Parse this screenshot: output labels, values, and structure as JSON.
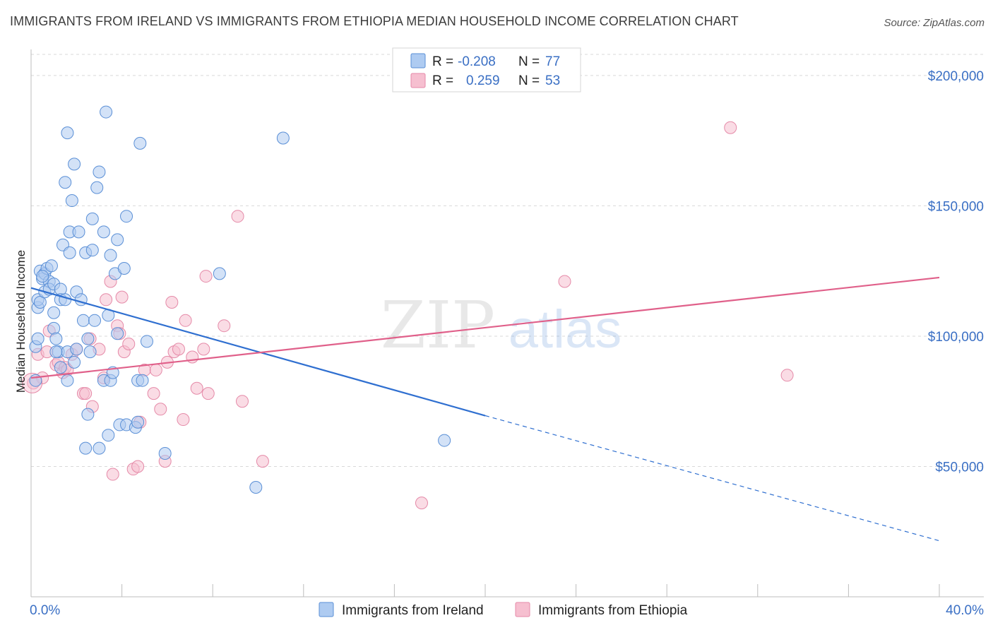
{
  "header": {
    "title": "IMMIGRANTS FROM IRELAND VS IMMIGRANTS FROM ETHIOPIA MEDIAN HOUSEHOLD INCOME CORRELATION CHART",
    "source": "Source: ZipAtlas.com"
  },
  "watermark": {
    "zip": "ZIP",
    "atlas": "atlas"
  },
  "colors": {
    "ireland_fill": "#aecbf1",
    "ireland_stroke": "#5a8fd6",
    "ireland_line": "#2f6fd0",
    "ethiopia_fill": "#f6bfd0",
    "ethiopia_stroke": "#e58aa8",
    "ethiopia_line": "#e0608a",
    "grid": "#d9d9d9",
    "axis_text": "#3a6fc4"
  },
  "legend_top": {
    "rows": [
      {
        "r_label": "R =",
        "r_value": "-0.208",
        "n_label": "N =",
        "n_value": "77"
      },
      {
        "r_label": "R =",
        "r_value": "0.259",
        "n_label": "N =",
        "n_value": "53"
      }
    ]
  },
  "legend_bottom": {
    "items": [
      "Immigrants from Ireland",
      "Immigrants from Ethiopia"
    ]
  },
  "chart_data": {
    "type": "scatter",
    "title": "IMMIGRANTS FROM IRELAND VS IMMIGRANTS FROM ETHIOPIA MEDIAN HOUSEHOLD INCOME CORRELATION CHART",
    "xlabel": "",
    "ylabel": "Median Household Income",
    "xlim": [
      0,
      40
    ],
    "ylim": [
      0,
      210000
    ],
    "x_tick_labels": [
      "0.0%",
      "40.0%"
    ],
    "y_ticks": [
      50000,
      100000,
      150000,
      200000
    ],
    "y_tick_labels": [
      "$50,000",
      "$100,000",
      "$150,000",
      "$200,000"
    ],
    "series": [
      {
        "name": "Immigrants from Ireland",
        "r": -0.208,
        "n": 77,
        "trend": {
          "x0": 0,
          "y0": 118500,
          "x1": 20,
          "y1": 69500,
          "dash_x1": 40,
          "dash_y1": 21500
        },
        "points": [
          [
            0.2,
            83000
          ],
          [
            0.2,
            96000
          ],
          [
            0.3,
            99000
          ],
          [
            0.3,
            111000
          ],
          [
            0.3,
            114000
          ],
          [
            0.4,
            113000
          ],
          [
            0.4,
            125000
          ],
          [
            0.5,
            122000
          ],
          [
            0.6,
            124000
          ],
          [
            0.6,
            117000
          ],
          [
            0.7,
            126000
          ],
          [
            0.8,
            121000
          ],
          [
            0.8,
            118000
          ],
          [
            0.9,
            127000
          ],
          [
            1.0,
            120000
          ],
          [
            1.0,
            109000
          ],
          [
            1.0,
            103000
          ],
          [
            1.1,
            99000
          ],
          [
            1.2,
            94000
          ],
          [
            1.3,
            118000
          ],
          [
            1.3,
            114000
          ],
          [
            1.4,
            135000
          ],
          [
            1.5,
            114000
          ],
          [
            1.6,
            94000
          ],
          [
            1.6,
            83000
          ],
          [
            1.7,
            140000
          ],
          [
            1.7,
            132000
          ],
          [
            1.8,
            152000
          ],
          [
            1.9,
            166000
          ],
          [
            2.0,
            117000
          ],
          [
            2.1,
            140000
          ],
          [
            2.2,
            114000
          ],
          [
            2.3,
            106000
          ],
          [
            2.4,
            132000
          ],
          [
            2.4,
            57000
          ],
          [
            2.5,
            99000
          ],
          [
            2.5,
            70000
          ],
          [
            2.6,
            94000
          ],
          [
            2.7,
            145000
          ],
          [
            2.7,
            133000
          ],
          [
            2.8,
            106000
          ],
          [
            2.9,
            157000
          ],
          [
            3.0,
            163000
          ],
          [
            3.0,
            57000
          ],
          [
            3.2,
            83000
          ],
          [
            3.2,
            140000
          ],
          [
            3.3,
            186000
          ],
          [
            3.4,
            108000
          ],
          [
            3.4,
            62000
          ],
          [
            3.5,
            83000
          ],
          [
            3.5,
            131000
          ],
          [
            3.6,
            86000
          ],
          [
            3.7,
            124000
          ],
          [
            3.8,
            101000
          ],
          [
            3.8,
            137000
          ],
          [
            3.9,
            66000
          ],
          [
            4.1,
            126000
          ],
          [
            4.2,
            146000
          ],
          [
            4.2,
            66000
          ],
          [
            4.6,
            65000
          ],
          [
            4.7,
            67000
          ],
          [
            4.7,
            83000
          ],
          [
            4.8,
            174000
          ],
          [
            4.9,
            83000
          ],
          [
            5.1,
            98000
          ],
          [
            5.9,
            55000
          ],
          [
            1.6,
            178000
          ],
          [
            1.5,
            159000
          ],
          [
            8.3,
            124000
          ],
          [
            9.9,
            42000
          ],
          [
            11.1,
            176000
          ],
          [
            18.2,
            60000
          ],
          [
            1.1,
            94000
          ],
          [
            0.5,
            123000
          ],
          [
            2.0,
            95000
          ],
          [
            1.9,
            90000
          ],
          [
            1.3,
            88000
          ]
        ]
      },
      {
        "name": "Immigrants from Ethiopia",
        "r": 0.259,
        "n": 53,
        "trend": {
          "x0": 0,
          "y0": 84000,
          "x1": 40,
          "y1": 122500
        },
        "points": [
          [
            0.1,
            82000
          ],
          [
            0.3,
            93000
          ],
          [
            0.5,
            84000
          ],
          [
            0.7,
            94000
          ],
          [
            0.8,
            102000
          ],
          [
            1.1,
            89000
          ],
          [
            1.2,
            90000
          ],
          [
            1.4,
            86000
          ],
          [
            1.5,
            88000
          ],
          [
            1.6,
            87000
          ],
          [
            1.8,
            93000
          ],
          [
            2.0,
            95000
          ],
          [
            2.3,
            78000
          ],
          [
            2.4,
            78000
          ],
          [
            2.6,
            99000
          ],
          [
            2.7,
            73000
          ],
          [
            3.0,
            95000
          ],
          [
            3.2,
            84000
          ],
          [
            3.3,
            114000
          ],
          [
            3.5,
            121000
          ],
          [
            3.6,
            47000
          ],
          [
            3.8,
            104000
          ],
          [
            3.9,
            101000
          ],
          [
            4.0,
            115000
          ],
          [
            4.1,
            94000
          ],
          [
            4.3,
            97000
          ],
          [
            4.5,
            49000
          ],
          [
            4.7,
            50000
          ],
          [
            4.8,
            67000
          ],
          [
            5.0,
            87000
          ],
          [
            5.4,
            78000
          ],
          [
            5.5,
            87000
          ],
          [
            5.7,
            72000
          ],
          [
            5.9,
            52000
          ],
          [
            6.0,
            90000
          ],
          [
            6.2,
            113000
          ],
          [
            6.3,
            94000
          ],
          [
            6.5,
            95000
          ],
          [
            6.7,
            68000
          ],
          [
            6.8,
            106000
          ],
          [
            7.1,
            92000
          ],
          [
            7.3,
            80000
          ],
          [
            7.6,
            95000
          ],
          [
            7.7,
            123000
          ],
          [
            7.8,
            78000
          ],
          [
            8.5,
            104000
          ],
          [
            9.1,
            146000
          ],
          [
            9.3,
            75000
          ],
          [
            10.2,
            52000
          ],
          [
            17.2,
            36000
          ],
          [
            23.5,
            121000
          ],
          [
            30.8,
            180000
          ],
          [
            33.3,
            85000
          ]
        ]
      }
    ]
  }
}
